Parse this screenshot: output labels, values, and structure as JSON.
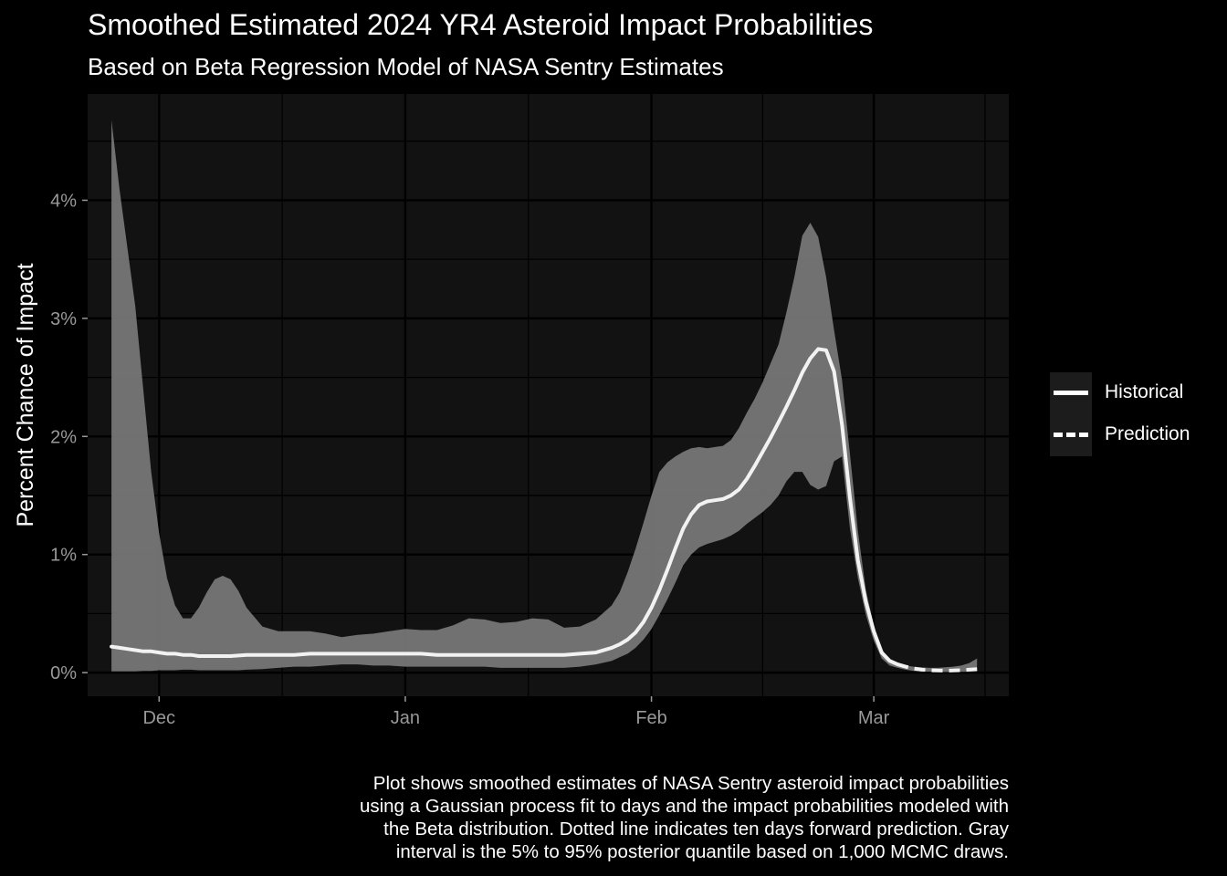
{
  "chart_data": {
    "type": "line",
    "title": "Smoothed Estimated 2024 YR4 Asteroid Impact Probabilities",
    "subtitle": "Based on Beta Regression Model of NASA Sentry Estimates",
    "xlabel": "",
    "ylabel": "Percent Chance of Impact",
    "x_ticks": [
      "Dec",
      "Jan",
      "Feb",
      "Mar"
    ],
    "y_ticks": [
      "0%",
      "1%",
      "2%",
      "3%",
      "4%"
    ],
    "ylim": [
      -0.2,
      4.9
    ],
    "xlim": [
      "2024-11-22",
      "2025-03-18"
    ],
    "grid": true,
    "legend_position": "right",
    "legend": [
      {
        "name": "Historical",
        "style": "solid"
      },
      {
        "name": "Prediction",
        "style": "dashed"
      }
    ],
    "caption_lines": [
      "Plot shows smoothed estimates of NASA Sentry asteroid impact probabilities",
      "using a Gaussian process fit to days and the impact probabilities modeled with",
      "the Beta distribution. Dotted line indicates ten days forward prediction. Gray",
      "interval is the 5% to 95% posterior quantile based on 1,000 MCMC draws."
    ],
    "colors": {
      "background": "#000000",
      "panel": "#121212",
      "band": "#7a7a7a",
      "line": "#f2f2f2"
    },
    "series": [
      {
        "name": "Historical",
        "x": [
          "2024-11-25",
          "2024-11-26",
          "2024-11-27",
          "2024-11-28",
          "2024-11-29",
          "2024-11-30",
          "2024-12-01",
          "2024-12-02",
          "2024-12-03",
          "2024-12-04",
          "2024-12-05",
          "2024-12-06",
          "2024-12-07",
          "2024-12-08",
          "2024-12-09",
          "2024-12-10",
          "2024-12-11",
          "2024-12-12",
          "2024-12-14",
          "2024-12-16",
          "2024-12-18",
          "2024-12-20",
          "2024-12-22",
          "2024-12-24",
          "2024-12-26",
          "2024-12-28",
          "2024-12-30",
          "2025-01-01",
          "2025-01-03",
          "2025-01-05",
          "2025-01-07",
          "2025-01-09",
          "2025-01-11",
          "2025-01-13",
          "2025-01-15",
          "2025-01-17",
          "2025-01-19",
          "2025-01-21",
          "2025-01-23",
          "2025-01-25",
          "2025-01-27",
          "2025-01-28",
          "2025-01-29",
          "2025-01-30",
          "2025-01-31",
          "2025-02-01",
          "2025-02-02",
          "2025-02-03",
          "2025-02-04",
          "2025-02-05",
          "2025-02-06",
          "2025-02-07",
          "2025-02-08",
          "2025-02-09",
          "2025-02-10",
          "2025-02-11",
          "2025-02-12",
          "2025-02-13",
          "2025-02-14",
          "2025-02-15",
          "2025-02-16",
          "2025-02-17",
          "2025-02-18",
          "2025-02-19",
          "2025-02-20",
          "2025-02-21",
          "2025-02-22",
          "2025-02-23",
          "2025-02-24",
          "2025-02-25",
          "2025-02-26",
          "2025-02-27",
          "2025-02-28",
          "2025-03-01",
          "2025-03-02",
          "2025-03-03",
          "2025-03-04"
        ],
        "y": [
          0.22,
          0.21,
          0.2,
          0.19,
          0.18,
          0.18,
          0.17,
          0.16,
          0.16,
          0.15,
          0.15,
          0.14,
          0.14,
          0.14,
          0.14,
          0.14,
          0.145,
          0.15,
          0.15,
          0.15,
          0.15,
          0.16,
          0.16,
          0.16,
          0.16,
          0.16,
          0.16,
          0.16,
          0.16,
          0.15,
          0.15,
          0.15,
          0.15,
          0.15,
          0.15,
          0.15,
          0.15,
          0.15,
          0.16,
          0.17,
          0.21,
          0.24,
          0.28,
          0.34,
          0.43,
          0.55,
          0.7,
          0.87,
          1.05,
          1.22,
          1.34,
          1.42,
          1.45,
          1.46,
          1.47,
          1.5,
          1.55,
          1.64,
          1.75,
          1.87,
          1.99,
          2.12,
          2.25,
          2.39,
          2.54,
          2.66,
          2.74,
          2.73,
          2.55,
          2.1,
          1.48,
          0.95,
          0.6,
          0.35,
          0.17,
          0.1,
          0.07
        ],
        "lower": [
          0.01,
          0.01,
          0.01,
          0.01,
          0.015,
          0.015,
          0.02,
          0.02,
          0.02,
          0.025,
          0.025,
          0.02,
          0.02,
          0.02,
          0.02,
          0.02,
          0.02,
          0.025,
          0.03,
          0.04,
          0.05,
          0.05,
          0.06,
          0.07,
          0.07,
          0.06,
          0.06,
          0.05,
          0.05,
          0.05,
          0.05,
          0.05,
          0.05,
          0.04,
          0.04,
          0.04,
          0.04,
          0.04,
          0.05,
          0.07,
          0.1,
          0.13,
          0.16,
          0.21,
          0.28,
          0.37,
          0.49,
          0.62,
          0.76,
          0.91,
          1.0,
          1.06,
          1.09,
          1.11,
          1.13,
          1.16,
          1.2,
          1.26,
          1.31,
          1.36,
          1.42,
          1.5,
          1.62,
          1.7,
          1.7,
          1.59,
          1.55,
          1.58,
          1.79,
          1.83,
          1.22,
          0.8,
          0.49,
          0.27,
          0.12,
          0.06,
          0.04
        ],
        "upper": [
          4.68,
          4.1,
          3.6,
          3.1,
          2.4,
          1.7,
          1.18,
          0.8,
          0.57,
          0.46,
          0.46,
          0.55,
          0.68,
          0.79,
          0.82,
          0.79,
          0.69,
          0.55,
          0.39,
          0.35,
          0.35,
          0.35,
          0.33,
          0.3,
          0.32,
          0.33,
          0.35,
          0.37,
          0.36,
          0.36,
          0.4,
          0.46,
          0.45,
          0.42,
          0.43,
          0.46,
          0.45,
          0.38,
          0.39,
          0.45,
          0.57,
          0.68,
          0.85,
          1.05,
          1.27,
          1.5,
          1.7,
          1.78,
          1.83,
          1.87,
          1.9,
          1.91,
          1.9,
          1.91,
          1.92,
          1.97,
          2.07,
          2.2,
          2.32,
          2.46,
          2.62,
          2.78,
          3.05,
          3.35,
          3.7,
          3.81,
          3.69,
          3.35,
          2.9,
          2.48,
          1.85,
          1.2,
          0.7,
          0.4,
          0.2,
          0.1,
          0.07
        ]
      },
      {
        "name": "Prediction",
        "x": [
          "2025-03-04",
          "2025-03-05",
          "2025-03-06",
          "2025-03-07",
          "2025-03-08",
          "2025-03-09",
          "2025-03-10",
          "2025-03-11",
          "2025-03-12",
          "2025-03-13",
          "2025-03-14"
        ],
        "y": [
          0.07,
          0.05,
          0.035,
          0.025,
          0.02,
          0.018,
          0.017,
          0.018,
          0.02,
          0.025,
          0.03
        ],
        "lower": [
          0.04,
          0.025,
          0.015,
          0.01,
          0.008,
          0.006,
          0.005,
          0.006,
          0.007,
          0.008,
          0.01
        ],
        "upper": [
          0.07,
          0.06,
          0.05,
          0.045,
          0.04,
          0.04,
          0.045,
          0.05,
          0.06,
          0.08,
          0.12
        ]
      }
    ]
  }
}
